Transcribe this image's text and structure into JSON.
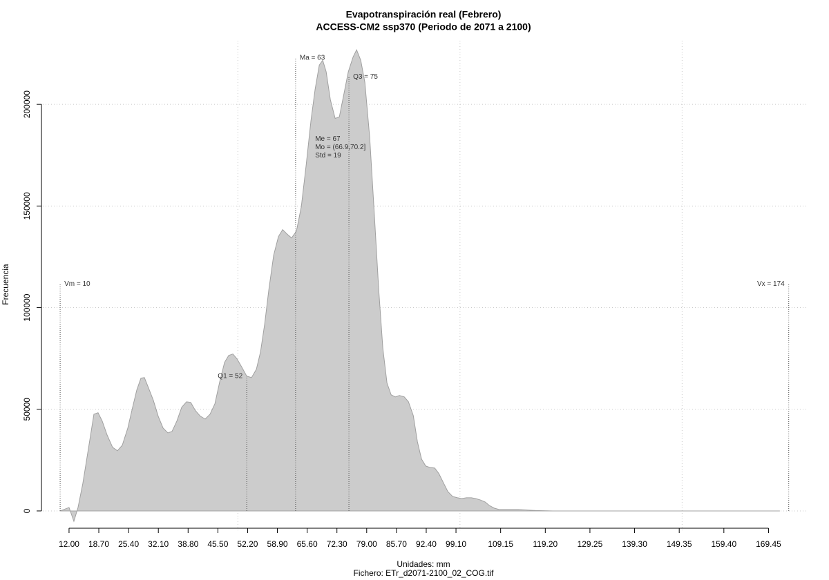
{
  "chart_data": {
    "type": "area",
    "title": "Evapotranspiración real (Febrero)",
    "subtitle": "ACCESS-CM2 ssp370 (Periodo de 2071 a 2100)",
    "xlabel": "Unidades: mm",
    "caption": "Fichero: ETr_d2071-2100_02_COG.tif",
    "ylabel": "Frecuencia",
    "color": "#cccccc",
    "stroke": "#a0a0a0",
    "grid": true,
    "xlim": [
      6.1,
      178.4
    ],
    "ylim": [
      -10200,
      231300
    ],
    "xticks": [
      {
        "value": 12,
        "label": "12.00"
      },
      {
        "value": 18.7,
        "label": "18.70"
      },
      {
        "value": 25.4,
        "label": "25.40"
      },
      {
        "value": 32.1,
        "label": "32.10"
      },
      {
        "value": 38.8,
        "label": "38.80"
      },
      {
        "value": 45.5,
        "label": "45.50"
      },
      {
        "value": 52.2,
        "label": "52.20"
      },
      {
        "value": 58.9,
        "label": "58.90"
      },
      {
        "value": 65.6,
        "label": "65.60"
      },
      {
        "value": 72.3,
        "label": "72.30"
      },
      {
        "value": 79,
        "label": "79.00"
      },
      {
        "value": 85.7,
        "label": "85.70"
      },
      {
        "value": 92.4,
        "label": "92.40"
      },
      {
        "value": 99.1,
        "label": "99.10"
      },
      109.15,
      {
        "value": 119.2,
        "label": "119.20"
      },
      129.25,
      {
        "value": 139.3,
        "label": "139.30"
      },
      149.35,
      {
        "value": 159.4,
        "label": "159.40"
      },
      169.45
    ],
    "xgrid": [
      50,
      100,
      150
    ],
    "yticks": [
      0,
      50000,
      100000,
      150000,
      200000
    ],
    "x": [
      10,
      12,
      13.09,
      14.02,
      15.11,
      16.36,
      17.6,
      18.53,
      19.47,
      20.56,
      21.8,
      22.89,
      23.98,
      25.23,
      26.31,
      27.25,
      28.18,
      28.96,
      29.89,
      30.98,
      32.07,
      33.16,
      34.25,
      35.18,
      36.27,
      37.36,
      38.45,
      39.38,
      40.47,
      41.56,
      42.65,
      43.74,
      44.83,
      45.92,
      47.01,
      47.94,
      48.88,
      49.81,
      50.9,
      51.99,
      53.08,
      54.17,
      55.1,
      56.03,
      56.97,
      58.06,
      59.14,
      60.08,
      61.17,
      62.1,
      63.19,
      64.28,
      65.37,
      66.46,
      67.39,
      68.33,
      69.1,
      69.88,
      70.82,
      71.9,
      72.84,
      73.77,
      74.86,
      75.95,
      76.73,
      77.66,
      78.59,
      79.68,
      80.62,
      81.71,
      82.64,
      83.57,
      84.51,
      85.44,
      86.37,
      87.46,
      88.4,
      89.49,
      90.42,
      91.35,
      92.29,
      93.22,
      94.31,
      95.24,
      96.33,
      97.27,
      98.36,
      99.44,
      100.38,
      101.47,
      102.56,
      103.49,
      104.58,
      105.67,
      106.6,
      107.69,
      108.78,
      110.8,
      113.14,
      117.03,
      120.92,
      128.7,
      172
    ],
    "values": [
      0,
      1700,
      -5100,
      1700,
      13600,
      30600,
      47600,
      48300,
      44200,
      37400,
      31300,
      29600,
      32300,
      40800,
      51000,
      59500,
      65300,
      65600,
      60500,
      54400,
      46600,
      40800,
      38400,
      39100,
      44200,
      51000,
      53700,
      53400,
      49300,
      46600,
      45200,
      47600,
      52700,
      63600,
      73100,
      76500,
      77200,
      74800,
      70700,
      66300,
      65600,
      69700,
      78200,
      91800,
      108800,
      125800,
      135000,
      138400,
      136000,
      134300,
      137700,
      149600,
      170000,
      192100,
      207400,
      219300,
      221700,
      216000,
      202300,
      193100,
      193800,
      204000,
      216000,
      223400,
      226800,
      221700,
      210800,
      183600,
      149600,
      108800,
      79900,
      62900,
      57100,
      56100,
      56800,
      56100,
      53700,
      46900,
      34000,
      25500,
      22100,
      21400,
      21100,
      18400,
      13600,
      9500,
      7100,
      6500,
      6100,
      6500,
      6500,
      6100,
      5400,
      4400,
      2700,
      1400,
      700,
      700,
      700,
      200,
      0,
      0,
      0
    ],
    "annotations": [
      {
        "text": "Vm = 10",
        "x": 10,
        "y": 111600,
        "side": "right"
      },
      {
        "text": "Q1 = 52",
        "x": 52,
        "y": 66300,
        "side": "left"
      },
      {
        "text": "Ma = 63",
        "x": 63,
        "y": 222800,
        "side": "right"
      },
      {
        "text": "Q3 = 75",
        "x": 75,
        "y": 213600,
        "side": "right"
      },
      {
        "text": "Vx = 174",
        "x": 174,
        "y": 111600,
        "side": "left"
      }
    ],
    "stats_box": {
      "x": 67.4,
      "y": 183000,
      "lines": [
        "Me = 67",
        "Mo = (66.9,70.2]",
        "Std = 19"
      ]
    }
  }
}
